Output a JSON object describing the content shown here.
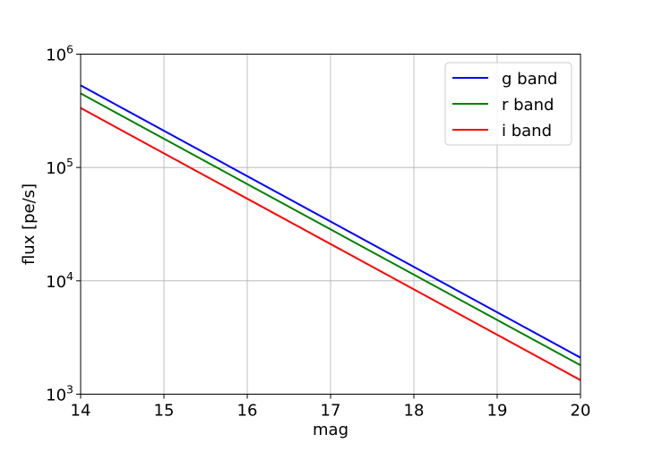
{
  "chart_data": {
    "type": "line",
    "title": "",
    "xlabel": "mag",
    "ylabel": "flux [pe/s]",
    "xlim": [
      14,
      20
    ],
    "ylim": [
      1000,
      1000000
    ],
    "yscale": "log",
    "grid": true,
    "legend_position": "top-right",
    "x_ticks": [
      {
        "value": 14,
        "label": "14"
      },
      {
        "value": 15,
        "label": "15"
      },
      {
        "value": 16,
        "label": "16"
      },
      {
        "value": 17,
        "label": "17"
      },
      {
        "value": 18,
        "label": "18"
      },
      {
        "value": 19,
        "label": "19"
      },
      {
        "value": 20,
        "label": "20"
      }
    ],
    "y_ticks": [
      {
        "value": 1000,
        "base": "10",
        "exponent": "3"
      },
      {
        "value": 10000,
        "base": "10",
        "exponent": "4"
      },
      {
        "value": 100000,
        "base": "10",
        "exponent": "5"
      },
      {
        "value": 1000000,
        "base": "10",
        "exponent": "6"
      }
    ],
    "series": [
      {
        "name": "g band",
        "color": "#0000ff",
        "x": [
          14,
          20
        ],
        "y": [
          530000,
          2100
        ]
      },
      {
        "name": "r band",
        "color": "#008000",
        "x": [
          14,
          20
        ],
        "y": [
          450000,
          1800
        ]
      },
      {
        "name": "i band",
        "color": "#ff0000",
        "x": [
          14,
          20
        ],
        "y": [
          335000,
          1330
        ]
      }
    ]
  }
}
